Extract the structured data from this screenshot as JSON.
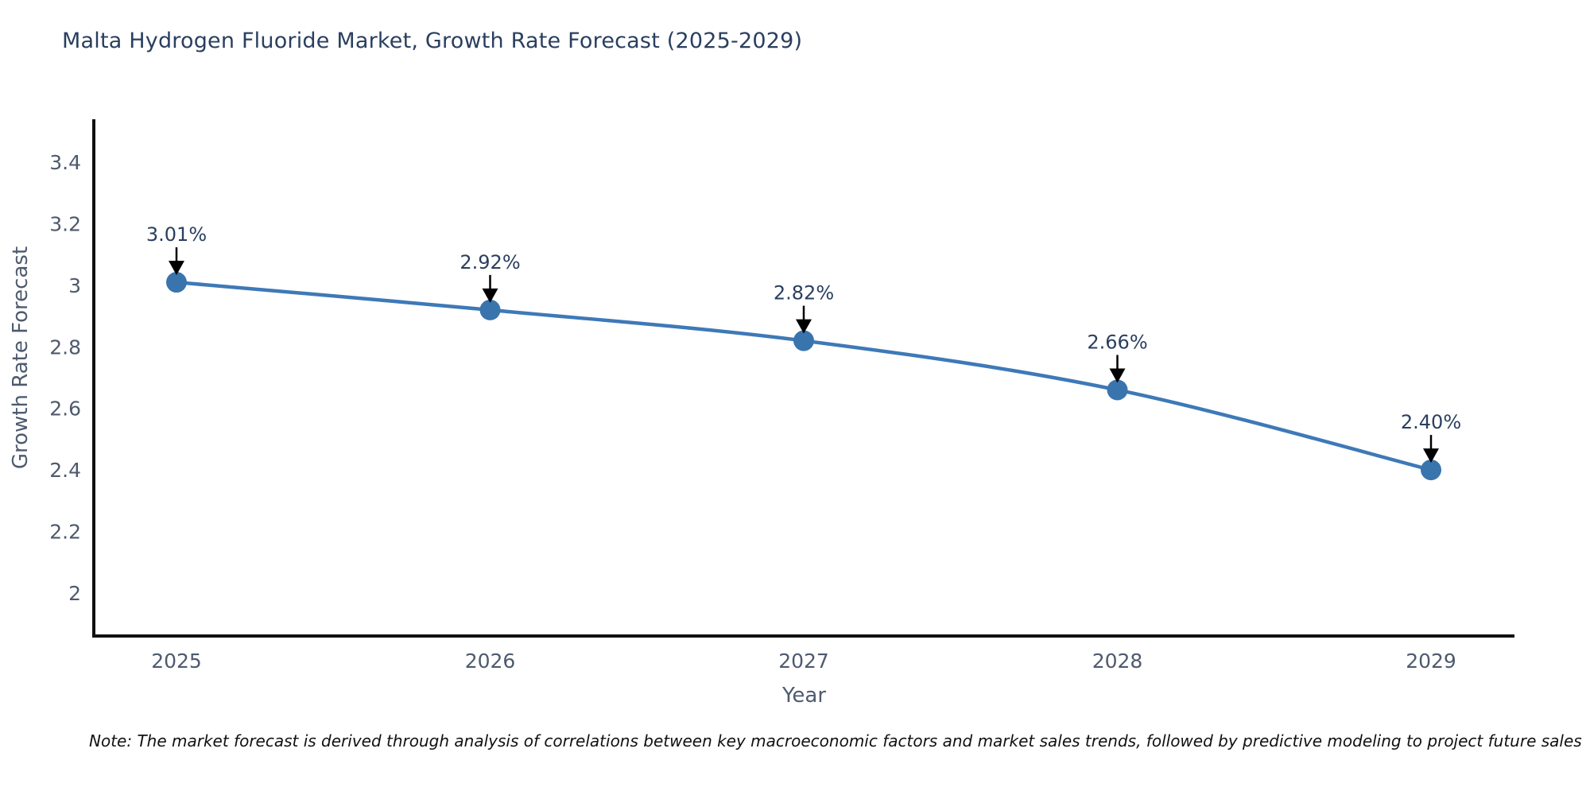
{
  "note": "Note: The market forecast is derived through analysis of correlations between key macroeconomic factors and market sales trends, followed by predictive modeling to project future sales",
  "chart_data": {
    "type": "line",
    "title": "Malta Hydrogen Fluoride Market, Growth Rate Forecast (2025-2029)",
    "xlabel": "Year",
    "ylabel": "Growth Rate Forecast",
    "x": [
      "2025",
      "2026",
      "2027",
      "2028",
      "2029"
    ],
    "y": [
      3.01,
      2.92,
      2.82,
      2.66,
      2.4
    ],
    "point_labels": [
      "3.01%",
      "2.92%",
      "2.82%",
      "2.66%",
      "2.40%"
    ],
    "yticks": [
      2,
      2.2,
      2.4,
      2.6,
      2.8,
      3,
      3.2,
      3.4
    ],
    "ytick_labels": [
      "2",
      "2.2",
      "2.4",
      "2.6",
      "2.8",
      "3",
      "3.2",
      "3.4"
    ],
    "ylim": [
      1.86,
      3.54
    ],
    "line_shape": "spline",
    "grid": false,
    "legend": false,
    "line_color": "#3e79b7",
    "marker_color": "#3a74ad",
    "annotation_arrow_color": "#000000"
  }
}
